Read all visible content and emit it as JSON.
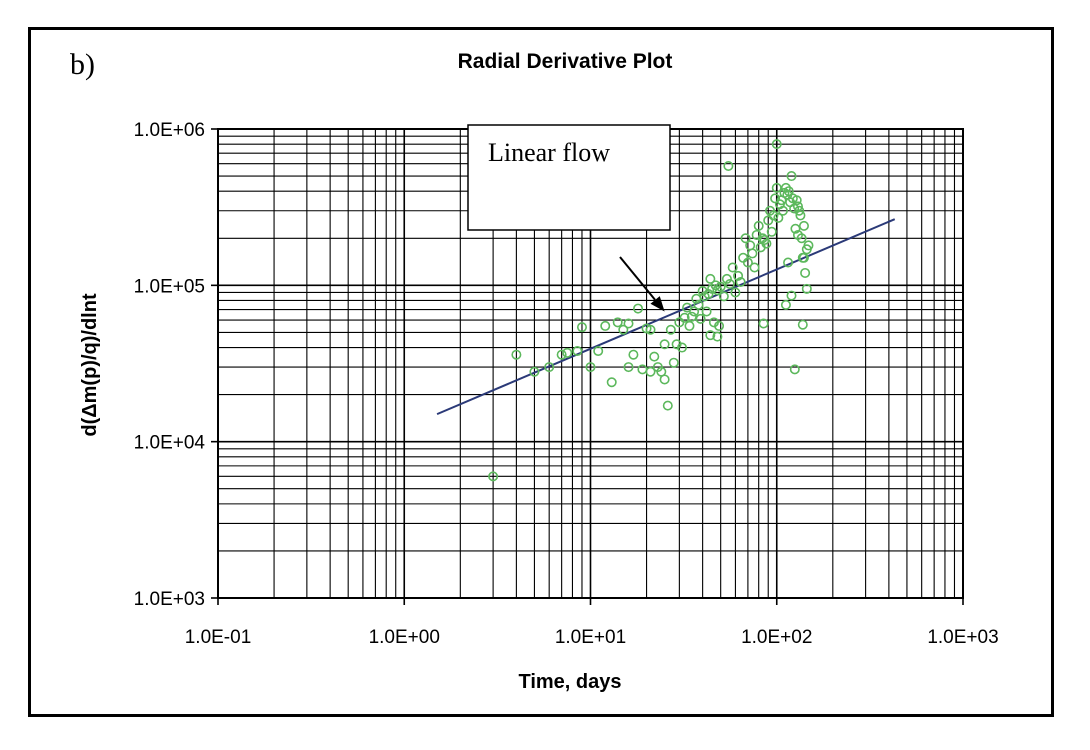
{
  "panel_label": "b)",
  "chart_data": {
    "type": "scatter",
    "title": "Radial Derivative Plot",
    "xlabel": "Time, days",
    "ylabel": "d(Δm(p)/q)/dlnt",
    "xscale": "log",
    "yscale": "log",
    "xlim": [
      0.1,
      1000
    ],
    "ylim": [
      1000,
      1000000
    ],
    "x_tick_labels": [
      "1.0E-01",
      "1.0E+00",
      "1.0E+01",
      "1.0E+02",
      "1.0E+03"
    ],
    "y_tick_labels": [
      "1.0E+03",
      "1.0E+04",
      "1.0E+05",
      "1.0E+06"
    ],
    "grid": true,
    "marker": "open-circle",
    "marker_color": "#5cb85c",
    "line_color": "#2b3a78",
    "annotation": {
      "text": "Linear flow",
      "arrow_target": [
        25,
        68000
      ]
    },
    "trend_line": {
      "x": [
        1.5,
        430
      ],
      "y": [
        15000,
        265000
      ]
    },
    "series": [
      {
        "x": [
          3,
          4,
          5,
          6,
          7,
          7.5,
          8.5,
          9,
          10,
          11,
          12,
          13,
          14,
          15,
          16,
          17,
          18,
          19,
          20,
          21,
          22,
          23,
          24,
          25,
          26,
          27,
          28,
          29,
          30,
          31,
          32,
          33,
          34,
          35,
          36,
          37,
          38,
          39,
          40,
          41,
          42,
          43,
          44,
          45,
          46,
          47,
          48,
          49,
          50,
          52,
          54,
          56,
          58,
          60,
          62,
          64,
          66,
          68,
          70,
          72,
          74,
          76,
          78,
          80,
          82,
          84,
          86,
          88,
          90,
          92,
          94,
          96,
          98,
          100,
          102,
          104,
          106,
          108,
          110,
          112,
          114,
          116,
          118,
          120,
          122,
          124,
          126,
          128,
          130,
          132,
          134,
          136,
          138,
          140,
          142,
          145,
          55,
          100,
          115,
          85,
          112,
          125,
          138,
          145,
          120,
          130,
          140,
          148,
          44,
          48,
          16,
          21,
          25
        ],
        "y": [
          6000,
          36000,
          28000,
          30000,
          36000,
          37000,
          38000,
          54000,
          30000,
          38000,
          55000,
          24000,
          58000,
          52000,
          30000,
          36000,
          71000,
          29000,
          53000,
          28000,
          35000,
          30000,
          28000,
          25000,
          17000,
          52000,
          32000,
          42000,
          58000,
          40000,
          62000,
          72000,
          55000,
          63000,
          68000,
          82000,
          75000,
          61000,
          92000,
          85000,
          68000,
          88000,
          110000,
          95000,
          58000,
          100000,
          93000,
          55000,
          98000,
          85000,
          110000,
          102000,
          130000,
          90000,
          115000,
          105000,
          150000,
          200000,
          140000,
          180000,
          160000,
          130000,
          210000,
          240000,
          175000,
          200000,
          195000,
          185000,
          260000,
          300000,
          220000,
          280000,
          360000,
          420000,
          270000,
          330000,
          350000,
          300000,
          390000,
          420000,
          380000,
          400000,
          340000,
          500000,
          360000,
          310000,
          230000,
          350000,
          320000,
          300000,
          280000,
          200000,
          150000,
          240000,
          120000,
          170000,
          580000,
          800000,
          140000,
          57000,
          75000,
          29000,
          56000,
          95000,
          86000,
          210000,
          150000,
          180000,
          48000,
          47000,
          57000,
          52000,
          42000
        ]
      }
    ]
  }
}
